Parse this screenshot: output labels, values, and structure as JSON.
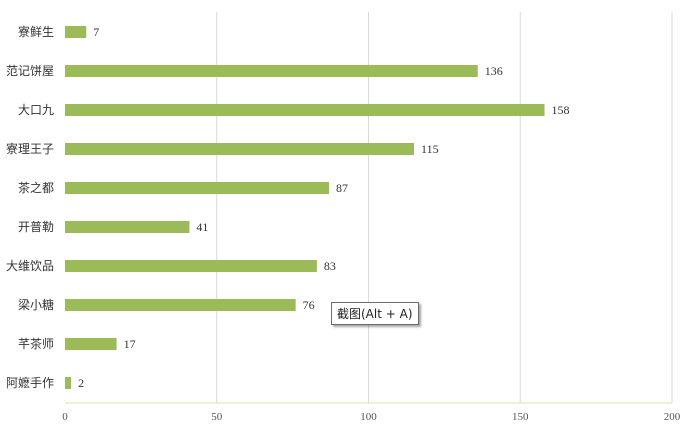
{
  "chart_data": {
    "type": "bar",
    "orientation": "horizontal",
    "categories": [
      "寮鲜生",
      "范记饼屋",
      "大口九",
      "寮理王子",
      "茶之都",
      "开普勒",
      "大维饮品",
      "梁小糖",
      "芊茶师",
      "阿嬷手作"
    ],
    "values": [
      7,
      136,
      158,
      115,
      87,
      41,
      83,
      76,
      17,
      2
    ],
    "x_ticks": [
      "0",
      "50",
      "100",
      "150",
      "200"
    ],
    "xlim": [
      0,
      200
    ],
    "grid": true,
    "bar_color": "#9bbb59",
    "grid_color": "#d9d9d9",
    "axis_color": "#e6e6a0",
    "title": "",
    "xlabel": "",
    "ylabel": ""
  },
  "tooltip": {
    "text": "截图(Alt + A)"
  }
}
